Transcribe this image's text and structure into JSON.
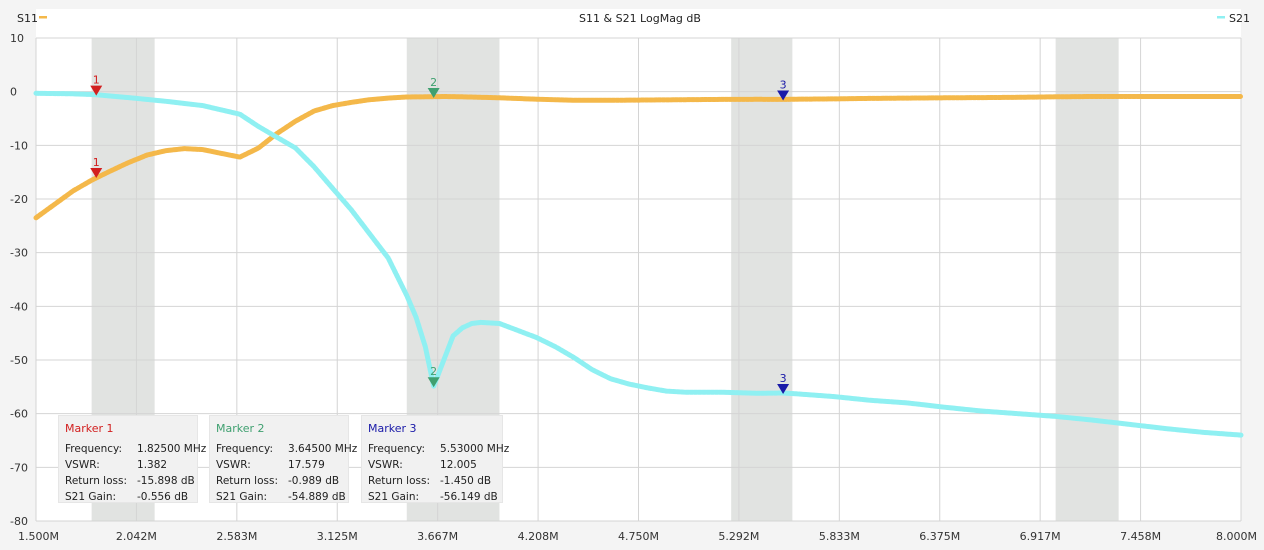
{
  "header": {
    "left_label": "S11",
    "title": "S11 & S21 LogMag dB",
    "right_label": "S21"
  },
  "colors": {
    "s11": "#f4b84a",
    "s21": "#8ff0f2",
    "band": "#e1e3e1",
    "marker1": "#d22020",
    "marker2": "#3fa070",
    "marker3": "#1a1aa8"
  },
  "chart_data": {
    "type": "line",
    "title": "S11 & S21 LogMag dB",
    "xlim": [
      1.5,
      8.0
    ],
    "ylim": [
      -80,
      10
    ],
    "x_ticks": [
      "1.500M",
      "2.042M",
      "2.583M",
      "3.125M",
      "3.667M",
      "4.208M",
      "4.750M",
      "5.292M",
      "5.833M",
      "6.375M",
      "6.917M",
      "7.458M",
      "8.000M"
    ],
    "y_ticks": [
      10,
      0,
      -10,
      -20,
      -30,
      -40,
      -50,
      -60,
      -70,
      -80
    ],
    "bands_mhz": [
      [
        1.8,
        2.14
      ],
      [
        3.5,
        4.0
      ],
      [
        5.25,
        5.58
      ],
      [
        7.0,
        7.34
      ]
    ],
    "series": [
      {
        "name": "S11",
        "x": [
          1.5,
          1.6,
          1.7,
          1.8,
          1.9,
          2.0,
          2.1,
          2.2,
          2.3,
          2.4,
          2.5,
          2.6,
          2.7,
          2.8,
          2.9,
          3.0,
          3.1,
          3.2,
          3.3,
          3.4,
          3.5,
          3.6,
          3.7,
          3.8,
          3.9,
          4.0,
          4.2,
          4.4,
          4.6,
          4.8,
          5.0,
          5.2,
          5.4,
          5.53,
          5.6,
          5.8,
          6.0,
          6.2,
          6.4,
          6.6,
          6.8,
          7.0,
          7.2,
          7.4,
          7.6,
          7.8,
          8.0
        ],
        "y": [
          -23.5,
          -21,
          -18.5,
          -16.5,
          -14.8,
          -13.2,
          -11.8,
          -11,
          -10.6,
          -10.8,
          -11.5,
          -12.2,
          -10.5,
          -7.8,
          -5.5,
          -3.6,
          -2.6,
          -2,
          -1.5,
          -1.2,
          -1,
          -0.95,
          -0.9,
          -0.95,
          -1.05,
          -1.15,
          -1.4,
          -1.6,
          -1.6,
          -1.55,
          -1.5,
          -1.45,
          -1.42,
          -1.45,
          -1.4,
          -1.35,
          -1.25,
          -1.2,
          -1.15,
          -1.1,
          -1.05,
          -0.95,
          -0.9,
          -0.9,
          -0.9,
          -0.9,
          -0.9
        ]
      },
      {
        "name": "S21",
        "x": [
          1.5,
          1.7,
          1.825,
          1.9,
          2.0,
          2.2,
          2.4,
          2.6,
          2.7,
          2.8,
          2.9,
          3.0,
          3.1,
          3.2,
          3.3,
          3.4,
          3.5,
          3.55,
          3.6,
          3.645,
          3.7,
          3.75,
          3.8,
          3.85,
          3.9,
          4.0,
          4.1,
          4.2,
          4.3,
          4.4,
          4.5,
          4.6,
          4.7,
          4.8,
          4.9,
          5.0,
          5.2,
          5.4,
          5.53,
          5.6,
          5.8,
          6.0,
          6.2,
          6.4,
          6.6,
          6.8,
          7.0,
          7.2,
          7.4,
          7.6,
          7.8,
          8.0
        ],
        "y": [
          -0.3,
          -0.4,
          -0.556,
          -0.8,
          -1.1,
          -1.8,
          -2.6,
          -4.2,
          -6.5,
          -8.5,
          -10.5,
          -14,
          -18,
          -22,
          -26.5,
          -31,
          -38,
          -42,
          -47.5,
          -54.889,
          -50,
          -45.5,
          -44,
          -43.2,
          -43,
          -43.2,
          -44.5,
          -45.8,
          -47.5,
          -49.5,
          -51.8,
          -53.5,
          -54.5,
          -55.2,
          -55.8,
          -56,
          -56,
          -56.2,
          -56.149,
          -56.3,
          -56.8,
          -57.5,
          -58,
          -58.8,
          -59.5,
          -60,
          -60.5,
          -61.2,
          -62,
          -62.8,
          -63.5,
          -64
        ]
      }
    ],
    "markers": [
      {
        "id": "1",
        "x": 1.825,
        "s11": -15.898,
        "s21": -0.556
      },
      {
        "id": "2",
        "x": 3.645,
        "s11": -0.989,
        "s21": -54.889
      },
      {
        "id": "3",
        "x": 5.53,
        "s11": -1.45,
        "s21": -56.149
      }
    ]
  },
  "marker_boxes": [
    {
      "title": "Marker 1",
      "rows": [
        [
          "Frequency:",
          "1.82500 MHz"
        ],
        [
          "VSWR:",
          "1.382"
        ],
        [
          "Return loss:",
          "-15.898 dB"
        ],
        [
          "S21 Gain:",
          "-0.556 dB"
        ]
      ]
    },
    {
      "title": "Marker 2",
      "rows": [
        [
          "Frequency:",
          "3.64500 MHz"
        ],
        [
          "VSWR:",
          "17.579"
        ],
        [
          "Return loss:",
          "-0.989 dB"
        ],
        [
          "S21 Gain:",
          "-54.889 dB"
        ]
      ]
    },
    {
      "title": "Marker 3",
      "rows": [
        [
          "Frequency:",
          "5.53000 MHz"
        ],
        [
          "VSWR:",
          "12.005"
        ],
        [
          "Return loss:",
          "-1.450 dB"
        ],
        [
          "S21 Gain:",
          "-56.149 dB"
        ]
      ]
    }
  ]
}
